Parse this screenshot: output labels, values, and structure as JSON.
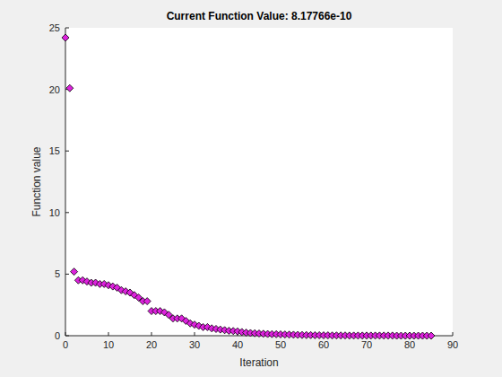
{
  "chart_data": {
    "type": "scatter",
    "title": "Current Function Value: 8.17766e-10",
    "x_label": "Iteration",
    "y_label": "Function value",
    "x": [
      0,
      1,
      2,
      3,
      4,
      5,
      6,
      7,
      8,
      9,
      10,
      11,
      12,
      13,
      14,
      15,
      16,
      17,
      18,
      19,
      20,
      21,
      22,
      23,
      24,
      25,
      26,
      27,
      28,
      29,
      30,
      31,
      32,
      33,
      34,
      35,
      36,
      37,
      38,
      39,
      40,
      41,
      42,
      43,
      44,
      45,
      46,
      47,
      48,
      49,
      50,
      51,
      52,
      53,
      54,
      55,
      56,
      57,
      58,
      59,
      60,
      61,
      62,
      63,
      64,
      65,
      66,
      67,
      68,
      69,
      70,
      71,
      72,
      73,
      74,
      75,
      76,
      77,
      78,
      79,
      80,
      81,
      82,
      83,
      84,
      85
    ],
    "values": [
      24.2,
      20.1,
      5.2,
      4.5,
      4.5,
      4.4,
      4.3,
      4.3,
      4.2,
      4.2,
      4.1,
      4.0,
      3.9,
      3.7,
      3.6,
      3.5,
      3.3,
      3.1,
      2.8,
      2.8,
      2.0,
      2.0,
      2.0,
      1.9,
      1.7,
      1.4,
      1.4,
      1.4,
      1.2,
      1.0,
      0.9,
      0.8,
      0.7,
      0.7,
      0.6,
      0.55,
      0.5,
      0.45,
      0.4,
      0.38,
      0.35,
      0.3,
      0.25,
      0.22,
      0.2,
      0.18,
      0.16,
      0.14,
      0.13,
      0.12,
      0.11,
      0.1,
      0.09,
      0.08,
      0.07,
      0.06,
      0.05,
      0.05,
      0.04,
      0.04,
      0.03,
      0.03,
      0.02,
      0.02,
      0.02,
      0.02,
      0.01,
      0.01,
      0.01,
      0.01,
      0.01,
      0.01,
      0.01,
      0.01,
      0.01,
      0.01,
      0.01,
      0,
      0,
      0,
      0,
      0,
      0,
      0,
      0,
      0
    ],
    "color": "#dd22dd",
    "marker": "diamond",
    "xlim": [
      0,
      90
    ],
    "xticks": [
      0,
      10,
      20,
      30,
      40,
      50,
      60,
      70,
      80,
      90
    ],
    "ylim": [
      0,
      25
    ],
    "yticks": [
      0,
      5,
      10,
      15,
      20,
      25
    ],
    "grid": false
  }
}
